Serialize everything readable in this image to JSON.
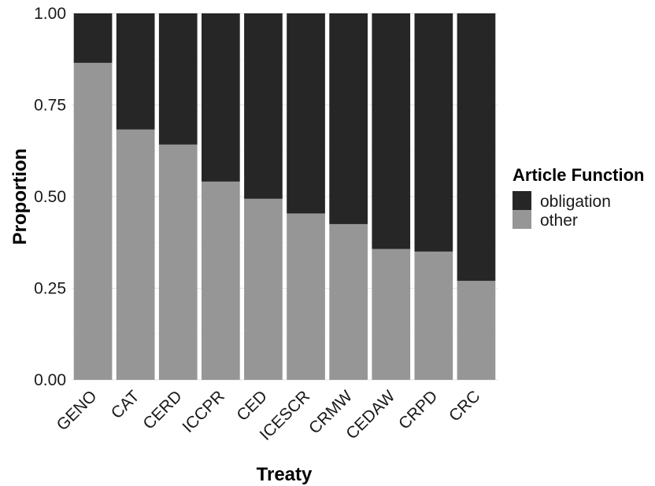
{
  "chart_data": {
    "type": "bar",
    "stacked": true,
    "xlabel": "Treaty",
    "ylabel": "Proportion",
    "ylim": [
      0,
      1
    ],
    "yticks": [
      "0.00",
      "0.25",
      "0.50",
      "0.75",
      "1.00"
    ],
    "categories": [
      "GENO",
      "CAT",
      "CERD",
      "ICCPR",
      "CED",
      "ICESCR",
      "CRMW",
      "CEDAW",
      "CRPD",
      "CRC"
    ],
    "series": [
      {
        "name": "other",
        "color": "#969696",
        "values": [
          0.865,
          0.683,
          0.642,
          0.541,
          0.494,
          0.454,
          0.425,
          0.357,
          0.35,
          0.27
        ]
      },
      {
        "name": "obligation",
        "color": "#262626",
        "values": [
          0.135,
          0.317,
          0.358,
          0.459,
          0.506,
          0.546,
          0.575,
          0.643,
          0.65,
          0.73
        ]
      }
    ],
    "legend": {
      "title": "Article Function",
      "position": "right",
      "entries": [
        {
          "label": "obligation",
          "color": "#262626"
        },
        {
          "label": "other",
          "color": "#969696"
        }
      ]
    },
    "grid": true
  }
}
